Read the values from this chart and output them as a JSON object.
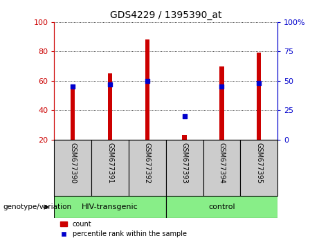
{
  "title": "GDS4229 / 1395390_at",
  "samples": [
    "GSM677390",
    "GSM677391",
    "GSM677392",
    "GSM677393",
    "GSM677394",
    "GSM677395"
  ],
  "count_values": [
    56,
    65,
    88,
    23,
    70,
    79
  ],
  "percentile_values": [
    45,
    47,
    50,
    20,
    45,
    48
  ],
  "ylim_left": [
    20,
    100
  ],
  "ylim_right": [
    0,
    100
  ],
  "left_yticks": [
    20,
    40,
    60,
    80,
    100
  ],
  "right_yticks": [
    0,
    25,
    50,
    75,
    100
  ],
  "right_yticklabels": [
    "0",
    "25",
    "50",
    "75",
    "100%"
  ],
  "bar_color": "#cc0000",
  "dot_color": "#0000cc",
  "group1_label": "HIV-transgenic",
  "group2_label": "control",
  "group1_indices": [
    0,
    1,
    2
  ],
  "group2_indices": [
    3,
    4,
    5
  ],
  "group_bg_color": "#88ee88",
  "sample_bg_color": "#cccccc",
  "xlabel_left": "genotype/variation",
  "legend_count": "count",
  "legend_pct": "percentile rank within the sample",
  "bar_width": 0.12,
  "left_axis_color": "#cc0000",
  "right_axis_color": "#0000cc",
  "grid_color": "#000000",
  "fig_bg_color": "#ffffff"
}
